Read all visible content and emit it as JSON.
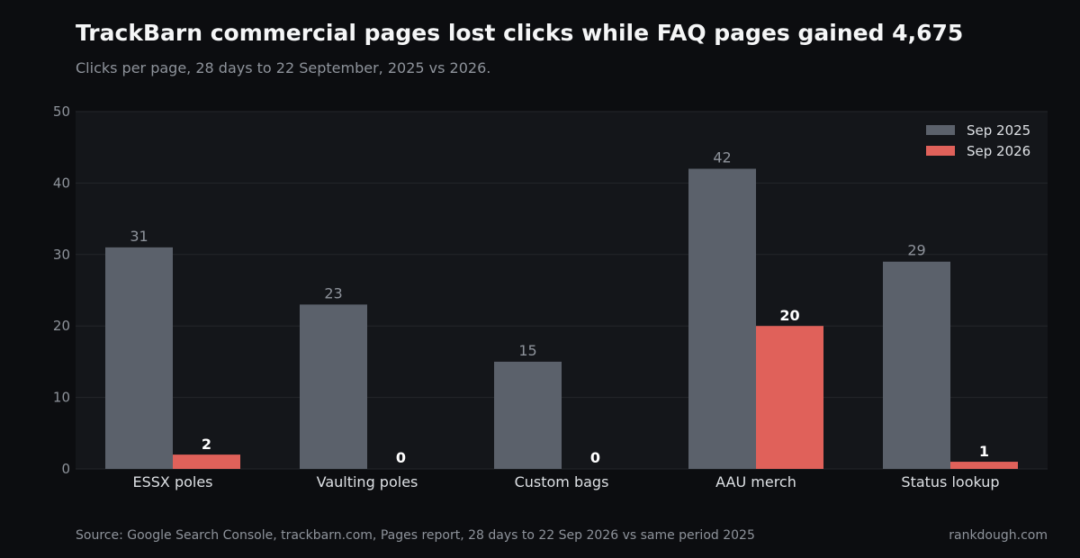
{
  "header": {
    "title": "TrackBarn commercial pages lost clicks while FAQ pages gained 4,675",
    "subtitle": "Clicks per page, 28 days to 22 September, 2025 vs 2026."
  },
  "footer": {
    "source": "Source: Google Search Console, trackbarn.com, Pages report, 28 days to 22 Sep 2026 vs same period 2025",
    "brand": "rankdough.com"
  },
  "colors": {
    "page_background": "#0c0d10",
    "plot_background": "#14161a",
    "gridline": "#23262b",
    "series_2025": "#5b616b",
    "series_2026": "#e0615a",
    "axis_text": "#8e939b",
    "category_text": "#dde0e4"
  },
  "chart_data": {
    "type": "bar",
    "categories": [
      "ESSX poles",
      "Vaulting poles",
      "Custom bags",
      "AAU merch",
      "Status lookup"
    ],
    "series": [
      {
        "name": "Sep 2025",
        "values": [
          31,
          23,
          15,
          42,
          29
        ]
      },
      {
        "name": "Sep 2026",
        "values": [
          2,
          0,
          0,
          20,
          1
        ]
      }
    ],
    "ylim": [
      0,
      50
    ],
    "yticks": [
      "0",
      "10",
      "20",
      "30",
      "40",
      "50"
    ],
    "grid": true,
    "legend": "top-right"
  }
}
